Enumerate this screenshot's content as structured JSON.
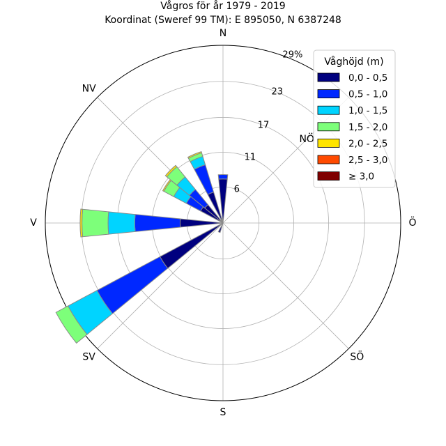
{
  "chart_data": {
    "type": "windrose",
    "title": "Vågros för år 1979 - 2019",
    "subtitle": "Koordinat (Sweref 99 TM): E 895050, N 6387248",
    "directions": [
      {
        "label": "N",
        "angle": 0
      },
      {
        "label": "NV",
        "angle": 315
      },
      {
        "label": "V",
        "angle": 270
      },
      {
        "label": "SV",
        "angle": 225
      },
      {
        "label": "S",
        "angle": 180
      },
      {
        "label": "SÖ",
        "angle": 135
      },
      {
        "label": "Ö",
        "angle": 90
      },
      {
        "label": "NÖ",
        "angle": 45
      }
    ],
    "radial_ticks": [
      {
        "label": "6",
        "value": 5.8
      },
      {
        "label": "11",
        "value": 11.4
      },
      {
        "label": "17",
        "value": 17.0
      },
      {
        "label": "23",
        "value": 22.8
      },
      {
        "label": "29%",
        "value": 28.6
      }
    ],
    "rmax": 28.6,
    "grid": true,
    "legend": {
      "title": "Våghöjd (m)",
      "position": "top-right",
      "entries": [
        {
          "label": "0,0 - 0,5",
          "color": "#00007f"
        },
        {
          "label": "0,5 - 1,0",
          "color": "#0028ff"
        },
        {
          "label": "1,0 - 1,5",
          "color": "#00d4ff"
        },
        {
          "label": "1,5 - 2,0",
          "color": "#7dff7a"
        },
        {
          "label": "2,0 - 2,5",
          "color": "#ffe500"
        },
        {
          "label": "2,5 - 3,0",
          "color": "#ff4a00"
        },
        {
          "label": "≥ 3,0",
          "color": "#7f0000"
        }
      ]
    },
    "sectors": [
      {
        "direction": 0,
        "values": [
          7.1,
          0.7,
          0,
          0,
          0,
          0,
          0
        ]
      },
      {
        "direction": 202.5,
        "values": [
          1.6,
          0,
          0,
          0,
          0,
          0,
          0
        ]
      },
      {
        "direction": 236.25,
        "values": [
          11.5,
          11.5,
          5.3,
          2.2,
          0,
          0,
          0
        ]
      },
      {
        "direction": 270,
        "values": [
          6.9,
          7.3,
          4.3,
          4.2,
          0.3,
          0,
          0
        ]
      },
      {
        "direction": 303.75,
        "values": [
          4.1,
          2.6,
          2.3,
          1.8,
          0.2,
          0,
          0
        ]
      },
      {
        "direction": 315,
        "values": [
          3.8,
          3.2,
          2.6,
          2.1,
          0.3,
          0,
          0
        ]
      },
      {
        "direction": 337.5,
        "values": [
          5.2,
          4.6,
          1.4,
          0.6,
          0.2,
          0,
          0
        ]
      }
    ]
  }
}
